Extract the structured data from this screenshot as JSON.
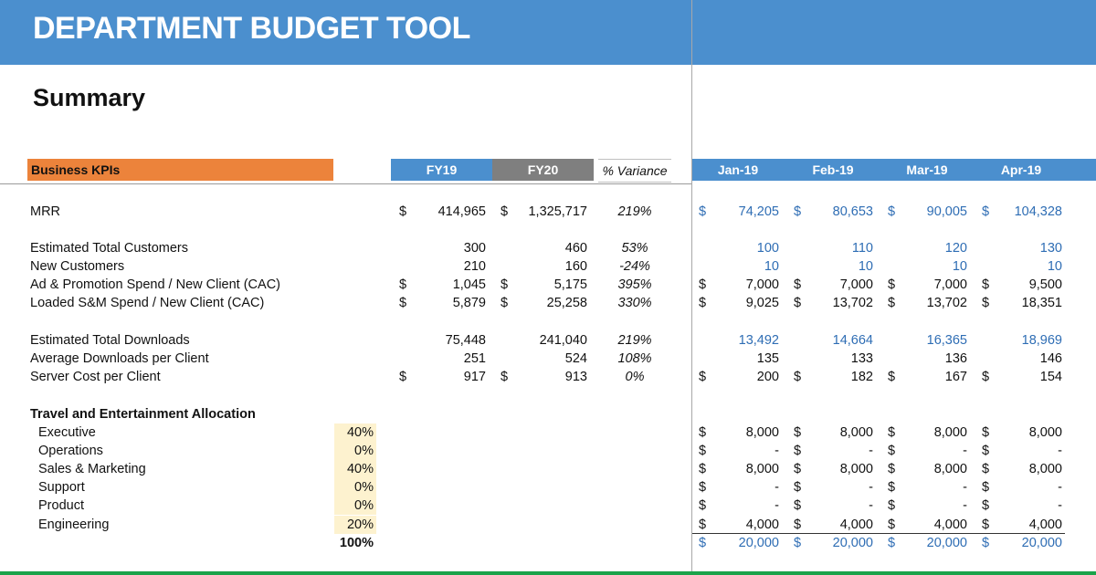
{
  "title": "DEPARTMENT BUDGET TOOL",
  "section_title": "Summary",
  "header": {
    "kpi_label": "Business KPIs",
    "fy19": "FY19",
    "fy20": "FY20",
    "variance": "% Variance",
    "months": [
      "Jan-19",
      "Feb-19",
      "Mar-19",
      "Apr-19"
    ]
  },
  "currency_symbol": "$",
  "rows": {
    "mrr": {
      "label": "MRR",
      "fy19": "414,965",
      "fy20": "1,325,717",
      "var": "219%",
      "months": [
        "74,205",
        "80,653",
        "90,005",
        "104,328"
      ]
    },
    "customers": {
      "label": "Estimated Total Customers",
      "fy19": "300",
      "fy20": "460",
      "var": "53%",
      "months": [
        "100",
        "110",
        "120",
        "130"
      ]
    },
    "new_customers": {
      "label": "New Customers",
      "fy19": "210",
      "fy20": "160",
      "var": "-24%",
      "months": [
        "10",
        "10",
        "10",
        "10"
      ]
    },
    "cac": {
      "label": "Ad & Promotion Spend / New Client (CAC)",
      "fy19": "1,045",
      "fy20": "5,175",
      "var": "395%",
      "months": [
        "7,000",
        "7,000",
        "7,000",
        "9,500"
      ]
    },
    "loaded_cac": {
      "label": "Loaded S&M Spend / New Client (CAC)",
      "fy19": "5,879",
      "fy20": "25,258",
      "var": "330%",
      "months": [
        "9,025",
        "13,702",
        "13,702",
        "18,351"
      ]
    },
    "downloads": {
      "label": "Estimated Total Downloads",
      "fy19": "75,448",
      "fy20": "241,040",
      "var": "219%",
      "months": [
        "13,492",
        "14,664",
        "16,365",
        "18,969"
      ]
    },
    "avg_downloads": {
      "label": "Average Downloads per Client",
      "fy19": "251",
      "fy20": "524",
      "var": "108%",
      "months": [
        "135",
        "133",
        "136",
        "146"
      ]
    },
    "server_cost": {
      "label": "Server Cost per Client",
      "fy19": "917",
      "fy20": "913",
      "var": "0%",
      "months": [
        "200",
        "182",
        "167",
        "154"
      ]
    }
  },
  "travel": {
    "title": "Travel and Entertainment Allocation",
    "items": [
      {
        "label": "Executive",
        "pct": "40%",
        "months": [
          "8,000",
          "8,000",
          "8,000",
          "8,000"
        ]
      },
      {
        "label": "Operations",
        "pct": "0%",
        "months": [
          "-",
          "-",
          "-",
          "-"
        ]
      },
      {
        "label": "Sales & Marketing",
        "pct": "40%",
        "months": [
          "8,000",
          "8,000",
          "8,000",
          "8,000"
        ]
      },
      {
        "label": "Support",
        "pct": "0%",
        "months": [
          "-",
          "-",
          "-",
          "-"
        ]
      },
      {
        "label": "Product",
        "pct": "0%",
        "months": [
          "-",
          "-",
          "-",
          "-"
        ]
      },
      {
        "label": "Engineering",
        "pct": "20%",
        "months": [
          "4,000",
          "4,000",
          "4,000",
          "4,000"
        ]
      }
    ],
    "total_pct": "100%",
    "total_months": [
      "20,000",
      "20,000",
      "20,000",
      "20,000"
    ]
  },
  "colors": {
    "banner": "#4b8fce",
    "kpi_bar": "#ec833b",
    "fy20": "#7f7f7f",
    "input_blue": "#2e6db4",
    "alloc_fill": "#fdf2cf",
    "bottom_line": "#1aa34a"
  }
}
